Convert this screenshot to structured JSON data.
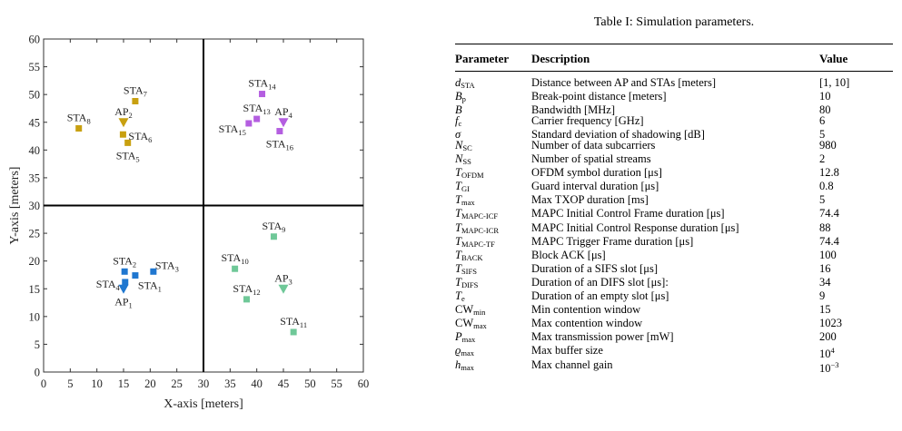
{
  "chart_data": {
    "type": "scatter",
    "xlabel": "X-axis [meters]",
    "ylabel": "Y-axis [meters]",
    "xlim": [
      0,
      60
    ],
    "ylim": [
      0,
      60
    ],
    "xticks": [
      "0",
      "5",
      "10",
      "15",
      "20",
      "25",
      "30",
      "35",
      "40",
      "45",
      "50",
      "55",
      "60"
    ],
    "yticks": [
      "0",
      "5",
      "10",
      "15",
      "20",
      "25",
      "30",
      "35",
      "40",
      "45",
      "50",
      "55",
      "60"
    ],
    "grid": false,
    "divider_lines": [
      {
        "axis": "x",
        "value": 30
      },
      {
        "axis": "y",
        "value": 30
      }
    ],
    "series": [
      {
        "color": "#1f77d0",
        "ap": {
          "x": 15,
          "y": 15,
          "label": "AP",
          "sub": "1",
          "anchor": "below"
        },
        "stas": [
          {
            "x": 15.2,
            "y": 18.1,
            "label": "STA",
            "sub": "2",
            "anchor": "above"
          },
          {
            "x": 17.2,
            "y": 17.4,
            "label": "STA",
            "sub": "1",
            "anchor": "right-below"
          },
          {
            "x": 20.6,
            "y": 18.1,
            "label": "STA",
            "sub": "3",
            "anchor": "right-above"
          },
          {
            "x": 15.3,
            "y": 16.2,
            "label": "STA",
            "sub": "4",
            "anchor": "left"
          }
        ]
      },
      {
        "color": "#c8a010",
        "ap": {
          "x": 15,
          "y": 45,
          "label": "AP",
          "sub": "2",
          "anchor": "above"
        },
        "stas": [
          {
            "x": 17.2,
            "y": 48.8,
            "label": "STA",
            "sub": "7",
            "anchor": "above"
          },
          {
            "x": 6.6,
            "y": 43.9,
            "label": "STA",
            "sub": "8",
            "anchor": "above"
          },
          {
            "x": 14.9,
            "y": 42.8,
            "label": "STA",
            "sub": "6",
            "anchor": "right"
          },
          {
            "x": 15.8,
            "y": 41.3,
            "label": "STA",
            "sub": "5",
            "anchor": "below"
          }
        ]
      },
      {
        "color": "#6fc898",
        "ap": {
          "x": 45,
          "y": 15,
          "label": "AP",
          "sub": "3",
          "anchor": "above"
        },
        "stas": [
          {
            "x": 43.2,
            "y": 24.4,
            "label": "STA",
            "sub": "9",
            "anchor": "above"
          },
          {
            "x": 35.9,
            "y": 18.6,
            "label": "STA",
            "sub": "10",
            "anchor": "above"
          },
          {
            "x": 38.1,
            "y": 13.1,
            "label": "STA",
            "sub": "12",
            "anchor": "above"
          },
          {
            "x": 46.9,
            "y": 7.2,
            "label": "STA",
            "sub": "11",
            "anchor": "above"
          }
        ]
      },
      {
        "color": "#b45ee0",
        "ap": {
          "x": 45,
          "y": 45,
          "label": "AP",
          "sub": "4",
          "anchor": "above"
        },
        "stas": [
          {
            "x": 41.0,
            "y": 50.1,
            "label": "STA",
            "sub": "14",
            "anchor": "above"
          },
          {
            "x": 40.0,
            "y": 45.6,
            "label": "STA",
            "sub": "13",
            "anchor": "above"
          },
          {
            "x": 38.5,
            "y": 44.8,
            "label": "STA",
            "sub": "15",
            "anchor": "left-below"
          },
          {
            "x": 44.3,
            "y": 43.4,
            "label": "STA",
            "sub": "16",
            "anchor": "below"
          }
        ]
      }
    ]
  },
  "table": {
    "caption": "Table I: Simulation parameters.",
    "headers": [
      "Parameter",
      "Description",
      "Value"
    ],
    "rows": [
      {
        "sym": "d",
        "sub": "STA",
        "desc": "Distance between AP and STAs [meters]",
        "value": "[1, 10]"
      },
      {
        "sym": "B",
        "sub": "p",
        "desc": "Break-point distance [meters]",
        "value": "10"
      },
      {
        "sym": "B",
        "sub": "",
        "desc": "Bandwidth [MHz]",
        "value": "80"
      },
      {
        "sym": "f",
        "sub": "c",
        "desc": "Carrier frequency [GHz]",
        "value": "6"
      },
      {
        "sym": "σ",
        "sub": "",
        "desc": "Standard deviation of shadowing [dB]",
        "value": "5"
      },
      {
        "sym": "N",
        "sub": "SC",
        "desc": "Number of data subcarriers",
        "value": "980"
      },
      {
        "sym": "N",
        "sub": "SS",
        "desc": "Number of spatial streams",
        "value": "2"
      },
      {
        "sym": "T",
        "sub": "OFDM",
        "desc": "OFDM symbol duration [μs]",
        "value": "12.8"
      },
      {
        "sym": "T",
        "sub": "GI",
        "desc": "Guard interval duration [μs]",
        "value": "0.8"
      },
      {
        "sym": "T",
        "sub": "max",
        "desc": "Max TXOP duration [ms]",
        "value": "5"
      },
      {
        "sym": "T",
        "sub": "MAPC-ICF",
        "desc": "MAPC Initial Control Frame duration [μs]",
        "value": "74.4"
      },
      {
        "sym": "T",
        "sub": "MAPC-ICR",
        "desc": "MAPC Initial Control Response duration [μs]",
        "value": "88"
      },
      {
        "sym": "T",
        "sub": "MAPC-TF",
        "desc": "MAPC Trigger Frame duration [μs]",
        "value": "74.4"
      },
      {
        "sym": "T",
        "sub": "BACK",
        "desc": "Block ACK [μs]",
        "value": "100"
      },
      {
        "sym": "T",
        "sub": "SIFS",
        "desc": "Duration of a SIFS slot [μs]",
        "value": "16"
      },
      {
        "sym": "T",
        "sub": "DIFS",
        "desc": "Duration of an DIFS slot [μs]:",
        "value": "34"
      },
      {
        "sym": "T",
        "sub": "e",
        "desc": "Duration of an empty slot [μs]",
        "value": "9"
      },
      {
        "sym": "CW",
        "sub": "min",
        "desc": "Min contention window",
        "value": "15",
        "upright": true
      },
      {
        "sym": "CW",
        "sub": "max",
        "desc": "Max contention window",
        "value": "1023",
        "upright": true
      },
      {
        "sym": "P",
        "sub": "max",
        "desc": "Max transmission power [mW]",
        "value": "200"
      },
      {
        "sym": "ϱ",
        "sub": "max",
        "desc": "Max buffer size",
        "value": "10",
        "sup": "4"
      },
      {
        "sym": "h",
        "sub": "max",
        "desc": "Max channel gain",
        "value": "10",
        "sup": "−3"
      }
    ]
  }
}
